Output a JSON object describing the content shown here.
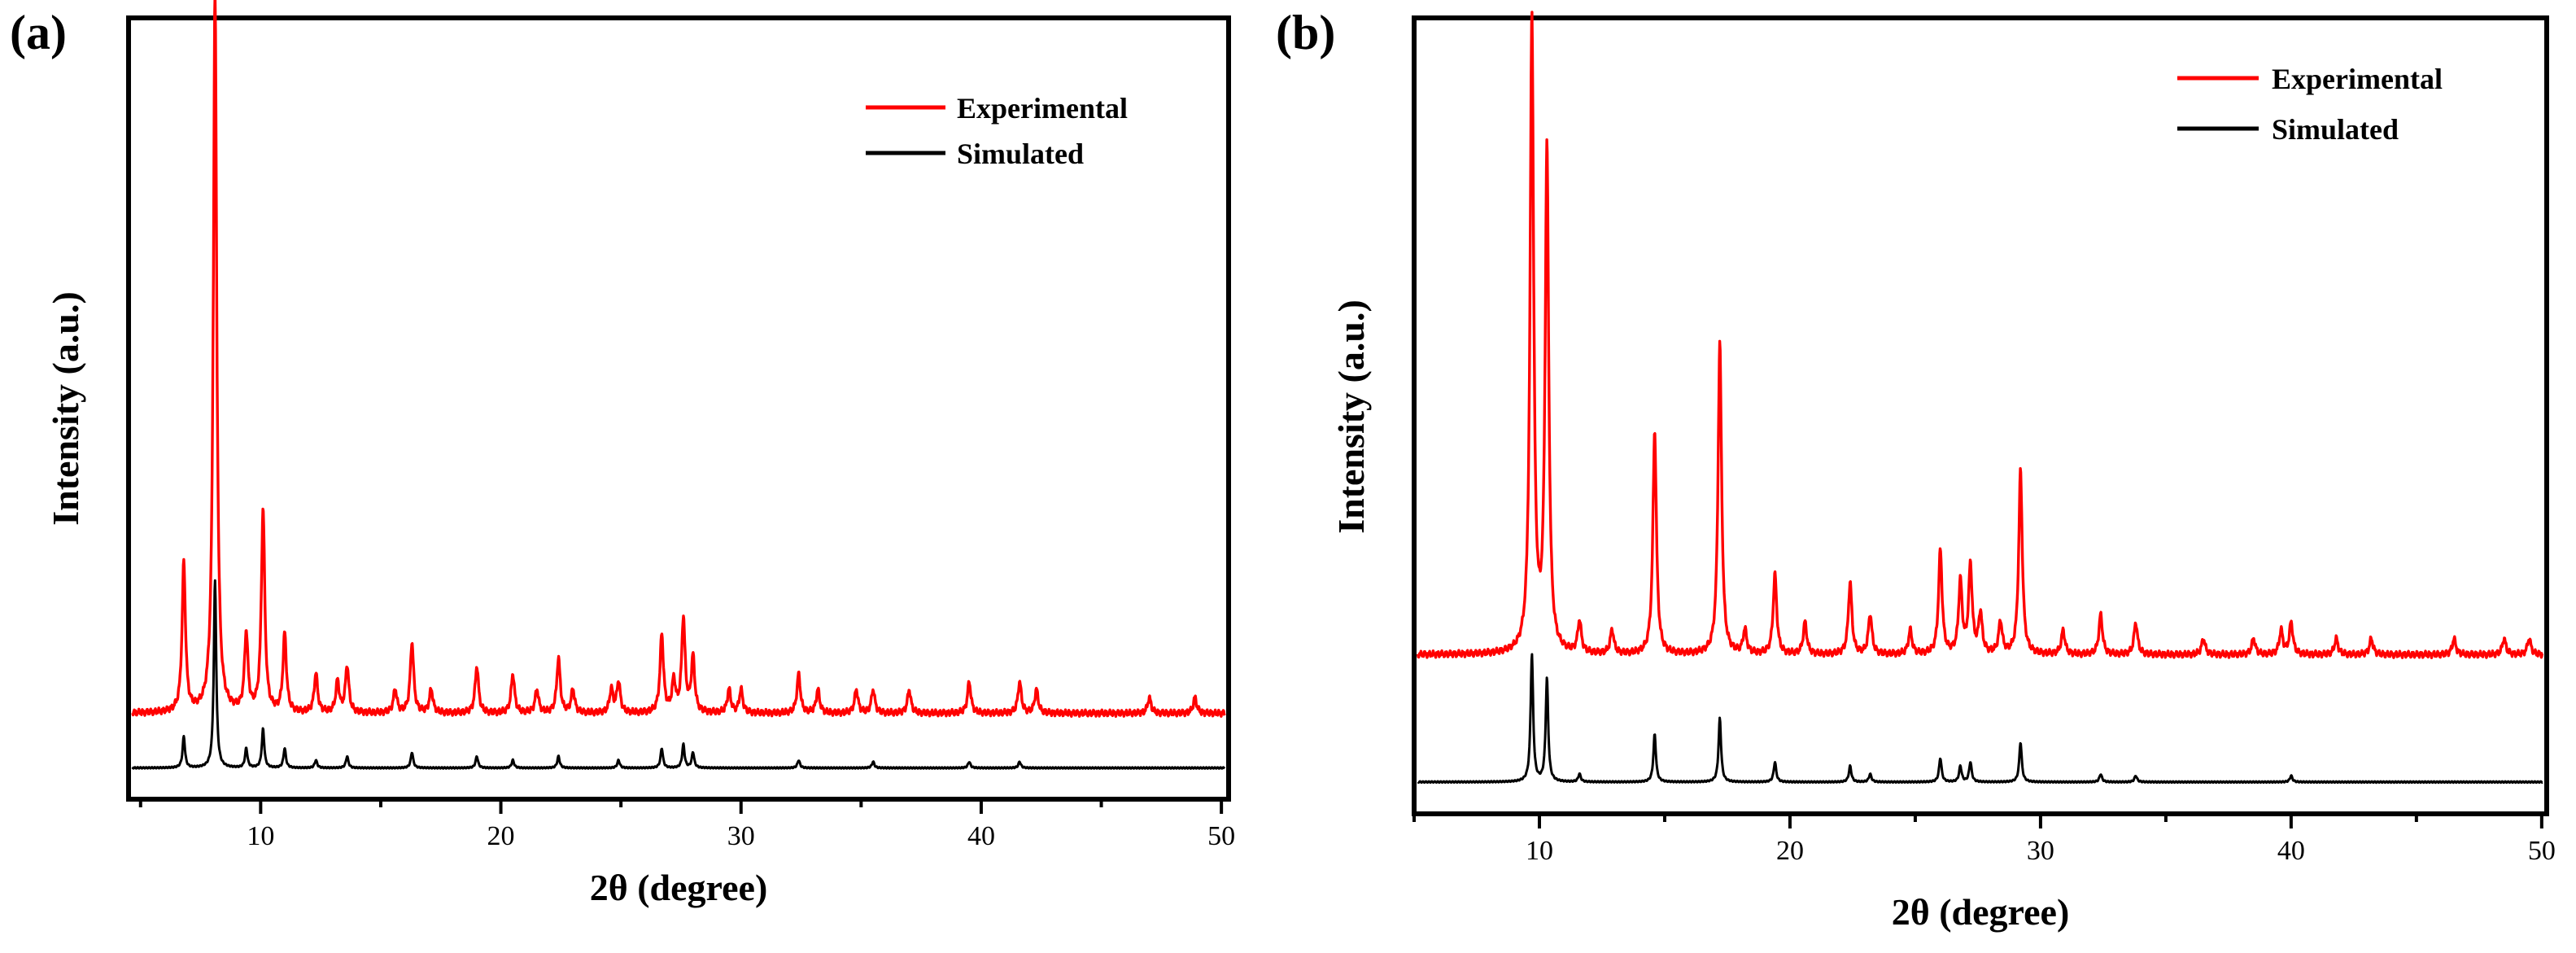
{
  "chart_data": [
    {
      "type": "line",
      "panel_label": "(a)",
      "title": "",
      "xlabel": "2θ (degree)",
      "ylabel": "Intensity (a.u.)",
      "xlim": [
        4.5,
        50.3
      ],
      "ylim": [
        0,
        100
      ],
      "xticks": [
        10,
        20,
        30,
        40,
        50
      ],
      "legend_position": "top-right",
      "baselines": {
        "Experimental": 11,
        "Simulated": 4
      },
      "series": [
        {
          "name": "Experimental",
          "color": "#ff0000",
          "peaks": [
            [
              6.8,
              19
            ],
            [
              8.1,
              92
            ],
            [
              9.4,
              10
            ],
            [
              10.1,
              26
            ],
            [
              11.0,
              10
            ],
            [
              12.3,
              5
            ],
            [
              13.2,
              4
            ],
            [
              13.6,
              6
            ],
            [
              15.6,
              3
            ],
            [
              16.3,
              9
            ],
            [
              17.1,
              3
            ],
            [
              19.0,
              6
            ],
            [
              20.5,
              5
            ],
            [
              21.5,
              3
            ],
            [
              22.4,
              7
            ],
            [
              23.0,
              3
            ],
            [
              24.6,
              3
            ],
            [
              24.9,
              4
            ],
            [
              26.7,
              10
            ],
            [
              27.2,
              4
            ],
            [
              27.6,
              12
            ],
            [
              28.0,
              7
            ],
            [
              29.5,
              3
            ],
            [
              30.0,
              3
            ],
            [
              32.4,
              5
            ],
            [
              33.2,
              3
            ],
            [
              34.8,
              3
            ],
            [
              35.5,
              3
            ],
            [
              37.0,
              3
            ],
            [
              39.5,
              4
            ],
            [
              41.6,
              4
            ],
            [
              42.3,
              3
            ],
            [
              47.0,
              2
            ],
            [
              48.9,
              2
            ]
          ]
        },
        {
          "name": "Simulated",
          "color": "#000000",
          "peaks": [
            [
              6.8,
              4
            ],
            [
              8.1,
              24
            ],
            [
              9.4,
              2.5
            ],
            [
              10.1,
              5
            ],
            [
              11.0,
              2.5
            ],
            [
              12.3,
              1
            ],
            [
              13.6,
              1.5
            ],
            [
              16.3,
              2
            ],
            [
              19.0,
              1.5
            ],
            [
              20.5,
              1
            ],
            [
              22.4,
              1.5
            ],
            [
              24.9,
              1
            ],
            [
              26.7,
              2.5
            ],
            [
              27.6,
              3
            ],
            [
              28.0,
              2
            ],
            [
              32.4,
              1
            ],
            [
              35.5,
              0.8
            ],
            [
              39.5,
              0.8
            ],
            [
              41.6,
              0.8
            ]
          ]
        }
      ]
    },
    {
      "type": "line",
      "panel_label": "(b)",
      "title": "",
      "xlabel": "2θ (degree)",
      "ylabel": "Intensity (a.u.)",
      "xlim": [
        5,
        50.2
      ],
      "ylim": [
        0,
        100
      ],
      "xticks": [
        10,
        20,
        30,
        40,
        50
      ],
      "legend_position": "top-right",
      "baselines": {
        "Experimental": 20,
        "Simulated": 4
      },
      "series": [
        {
          "name": "Experimental",
          "color": "#ff0000",
          "peaks": [
            [
              9.7,
              80
            ],
            [
              10.3,
              63
            ],
            [
              11.6,
              4
            ],
            [
              12.9,
              3
            ],
            [
              14.6,
              28
            ],
            [
              17.2,
              39
            ],
            [
              18.2,
              3
            ],
            [
              19.4,
              10
            ],
            [
              20.6,
              4
            ],
            [
              22.4,
              9
            ],
            [
              23.2,
              5
            ],
            [
              24.8,
              3
            ],
            [
              26.0,
              13
            ],
            [
              26.8,
              9
            ],
            [
              27.2,
              11
            ],
            [
              27.6,
              5
            ],
            [
              28.4,
              4
            ],
            [
              29.2,
              23
            ],
            [
              30.9,
              3
            ],
            [
              32.4,
              5
            ],
            [
              33.8,
              4
            ],
            [
              36.5,
              2
            ],
            [
              38.5,
              2
            ],
            [
              39.6,
              3
            ],
            [
              40.0,
              4
            ],
            [
              41.8,
              2
            ],
            [
              43.2,
              2
            ],
            [
              46.5,
              2
            ],
            [
              48.5,
              2
            ],
            [
              49.5,
              2
            ]
          ]
        },
        {
          "name": "Simulated",
          "color": "#000000",
          "peaks": [
            [
              9.7,
              16
            ],
            [
              10.3,
              13
            ],
            [
              11.6,
              1
            ],
            [
              14.6,
              6
            ],
            [
              17.2,
              8
            ],
            [
              19.4,
              2.5
            ],
            [
              22.4,
              2
            ],
            [
              23.2,
              1
            ],
            [
              26.0,
              3
            ],
            [
              26.8,
              2
            ],
            [
              27.2,
              2.5
            ],
            [
              29.2,
              5
            ],
            [
              32.4,
              1
            ],
            [
              33.8,
              0.8
            ],
            [
              40.0,
              0.8
            ]
          ]
        }
      ]
    }
  ]
}
